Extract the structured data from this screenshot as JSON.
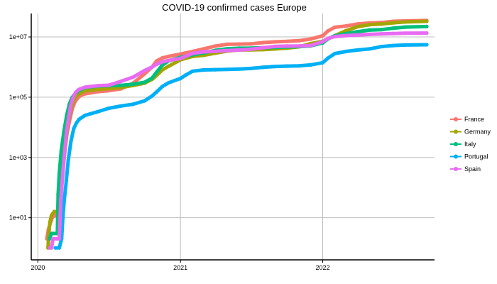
{
  "chart_data": {
    "type": "line",
    "title": "COVID-19 confirmed cases Europe",
    "xlabel": "",
    "ylabel": "",
    "y_scale": "log10",
    "ylim": [
      0.4,
      60000000
    ],
    "xlim": [
      "2019-12-15",
      "2022-10-15"
    ],
    "x_ticks": [
      "2020-01-01",
      "2021-01-01",
      "2022-01-01"
    ],
    "x_tick_labels": [
      "2020",
      "2021",
      "2022"
    ],
    "y_ticks": [
      10,
      1000,
      100000,
      10000000
    ],
    "y_tick_labels": [
      "1e+01",
      "1e+03",
      "1e+05",
      "1e+07"
    ],
    "grid": true,
    "legend_position": "right",
    "series": [
      {
        "name": "France",
        "color": "#F8766D",
        "points": [
          [
            "2020-01-24",
            2
          ],
          [
            "2020-01-28",
            4
          ],
          [
            "2020-02-01",
            6
          ],
          [
            "2020-02-08",
            11
          ],
          [
            "2020-02-15",
            12
          ],
          [
            "2020-02-25",
            14
          ],
          [
            "2020-02-29",
            60
          ],
          [
            "2020-03-08",
            1100
          ],
          [
            "2020-03-15",
            5400
          ],
          [
            "2020-03-22",
            16000
          ],
          [
            "2020-03-29",
            40000
          ],
          [
            "2020-04-05",
            70000
          ],
          [
            "2020-04-12",
            93000
          ],
          [
            "2020-04-20",
            115000
          ],
          [
            "2020-05-01",
            130000
          ],
          [
            "2020-06-01",
            152000
          ],
          [
            "2020-07-01",
            165000
          ],
          [
            "2020-08-01",
            190000
          ],
          [
            "2020-09-01",
            290000
          ],
          [
            "2020-10-01",
            600000
          ],
          [
            "2020-10-20",
            1000000
          ],
          [
            "2020-11-01",
            1600000
          ],
          [
            "2020-11-15",
            2000000
          ],
          [
            "2020-12-01",
            2250000
          ],
          [
            "2021-01-01",
            2700000
          ],
          [
            "2021-02-01",
            3300000
          ],
          [
            "2021-03-01",
            4000000
          ],
          [
            "2021-04-01",
            5000000
          ],
          [
            "2021-05-01",
            5700000
          ],
          [
            "2021-06-01",
            5800000
          ],
          [
            "2021-07-01",
            5900000
          ],
          [
            "2021-08-01",
            6500000
          ],
          [
            "2021-09-01",
            6900000
          ],
          [
            "2021-10-01",
            7100000
          ],
          [
            "2021-11-01",
            7500000
          ],
          [
            "2021-12-01",
            8500000
          ],
          [
            "2022-01-01",
            11000000
          ],
          [
            "2022-01-15",
            16000000
          ],
          [
            "2022-02-01",
            21000000
          ],
          [
            "2022-03-01",
            23000000
          ],
          [
            "2022-04-01",
            27000000
          ],
          [
            "2022-05-01",
            29000000
          ],
          [
            "2022-06-01",
            30000000
          ],
          [
            "2022-07-01",
            33000000
          ],
          [
            "2022-08-01",
            34000000
          ],
          [
            "2022-09-25",
            35000000
          ]
        ]
      },
      {
        "name": "Germany",
        "color": "#A3A500",
        "points": [
          [
            "2020-01-27",
            1
          ],
          [
            "2020-01-30",
            4
          ],
          [
            "2020-02-01",
            7
          ],
          [
            "2020-02-05",
            12
          ],
          [
            "2020-02-12",
            16
          ],
          [
            "2020-02-20",
            16
          ],
          [
            "2020-02-27",
            30
          ],
          [
            "2020-03-03",
            200
          ],
          [
            "2020-03-10",
            1500
          ],
          [
            "2020-03-17",
            9000
          ],
          [
            "2020-03-24",
            32000
          ],
          [
            "2020-03-31",
            68000
          ],
          [
            "2020-04-07",
            105000
          ],
          [
            "2020-04-15",
            130000
          ],
          [
            "2020-05-01",
            162000
          ],
          [
            "2020-06-01",
            182000
          ],
          [
            "2020-07-01",
            195000
          ],
          [
            "2020-08-01",
            210000
          ],
          [
            "2020-09-01",
            245000
          ],
          [
            "2020-10-01",
            295000
          ],
          [
            "2020-10-20",
            390000
          ],
          [
            "2020-11-01",
            530000
          ],
          [
            "2020-11-15",
            800000
          ],
          [
            "2020-12-01",
            1060000
          ],
          [
            "2021-01-01",
            1750000
          ],
          [
            "2021-02-01",
            2250000
          ],
          [
            "2021-03-01",
            2450000
          ],
          [
            "2021-04-01",
            2900000
          ],
          [
            "2021-05-01",
            3400000
          ],
          [
            "2021-06-01",
            3700000
          ],
          [
            "2021-07-01",
            3730000
          ],
          [
            "2021-08-01",
            3800000
          ],
          [
            "2021-09-01",
            4000000
          ],
          [
            "2021-10-01",
            4250000
          ],
          [
            "2021-11-01",
            4700000
          ],
          [
            "2021-12-01",
            6000000
          ],
          [
            "2022-01-01",
            7200000
          ],
          [
            "2022-02-01",
            11000000
          ],
          [
            "2022-03-01",
            16000000
          ],
          [
            "2022-04-01",
            22000000
          ],
          [
            "2022-05-01",
            25500000
          ],
          [
            "2022-06-01",
            27000000
          ],
          [
            "2022-07-01",
            29500000
          ],
          [
            "2022-08-01",
            31500000
          ],
          [
            "2022-09-25",
            33000000
          ]
        ]
      },
      {
        "name": "Italy",
        "color": "#00BF7D",
        "points": [
          [
            "2020-01-31",
            2
          ],
          [
            "2020-02-05",
            3
          ],
          [
            "2020-02-20",
            3
          ],
          [
            "2020-02-22",
            60
          ],
          [
            "2020-02-25",
            300
          ],
          [
            "2020-03-01",
            1700
          ],
          [
            "2020-03-08",
            7400
          ],
          [
            "2020-03-15",
            25000
          ],
          [
            "2020-03-22",
            60000
          ],
          [
            "2020-03-29",
            98000
          ],
          [
            "2020-04-05",
            128000
          ],
          [
            "2020-04-15",
            165000
          ],
          [
            "2020-05-01",
            207000
          ],
          [
            "2020-06-01",
            233000
          ],
          [
            "2020-07-01",
            240000
          ],
          [
            "2020-08-01",
            248000
          ],
          [
            "2020-09-01",
            270000
          ],
          [
            "2020-10-01",
            315000
          ],
          [
            "2020-10-20",
            430000
          ],
          [
            "2020-11-01",
            680000
          ],
          [
            "2020-11-15",
            1150000
          ],
          [
            "2020-12-01",
            1600000
          ],
          [
            "2021-01-01",
            2100000
          ],
          [
            "2021-02-01",
            2550000
          ],
          [
            "2021-03-01",
            2950000
          ],
          [
            "2021-04-01",
            3600000
          ],
          [
            "2021-05-01",
            4050000
          ],
          [
            "2021-06-01",
            4220000
          ],
          [
            "2021-07-01",
            4260000
          ],
          [
            "2021-08-01",
            4370000
          ],
          [
            "2021-09-01",
            4530000
          ],
          [
            "2021-10-01",
            4670000
          ],
          [
            "2021-11-01",
            4780000
          ],
          [
            "2021-12-01",
            5050000
          ],
          [
            "2022-01-01",
            6300000
          ],
          [
            "2022-01-15",
            8700000
          ],
          [
            "2022-02-01",
            10900000
          ],
          [
            "2022-03-01",
            12800000
          ],
          [
            "2022-04-01",
            15000000
          ],
          [
            "2022-05-01",
            16900000
          ],
          [
            "2022-06-01",
            17500000
          ],
          [
            "2022-07-01",
            19500000
          ],
          [
            "2022-08-01",
            21300000
          ],
          [
            "2022-09-25",
            22100000
          ]
        ]
      },
      {
        "name": "Portugal",
        "color": "#00B0F6",
        "points": [
          [
            "2020-02-15",
            1
          ],
          [
            "2020-02-25",
            1
          ],
          [
            "2020-03-02",
            2
          ],
          [
            "2020-03-05",
            10
          ],
          [
            "2020-03-09",
            40
          ],
          [
            "2020-03-14",
            170
          ],
          [
            "2020-03-19",
            800
          ],
          [
            "2020-03-26",
            3500
          ],
          [
            "2020-04-02",
            9000
          ],
          [
            "2020-04-09",
            14000
          ],
          [
            "2020-04-16",
            18500
          ],
          [
            "2020-05-01",
            25000
          ],
          [
            "2020-06-01",
            32500
          ],
          [
            "2020-07-01",
            43000
          ],
          [
            "2020-08-01",
            51000
          ],
          [
            "2020-09-01",
            58000
          ],
          [
            "2020-10-01",
            76000
          ],
          [
            "2020-10-20",
            110000
          ],
          [
            "2020-11-01",
            150000
          ],
          [
            "2020-11-15",
            225000
          ],
          [
            "2020-12-01",
            300000
          ],
          [
            "2021-01-01",
            420000
          ],
          [
            "2021-01-15",
            550000
          ],
          [
            "2021-02-01",
            730000
          ],
          [
            "2021-03-01",
            805000
          ],
          [
            "2021-04-01",
            822000
          ],
          [
            "2021-05-01",
            838000
          ],
          [
            "2021-06-01",
            860000
          ],
          [
            "2021-07-01",
            900000
          ],
          [
            "2021-08-01",
            980000
          ],
          [
            "2021-09-01",
            1050000
          ],
          [
            "2021-10-01",
            1075000
          ],
          [
            "2021-11-01",
            1095000
          ],
          [
            "2021-12-01",
            1180000
          ],
          [
            "2022-01-01",
            1400000
          ],
          [
            "2022-01-15",
            2000000
          ],
          [
            "2022-02-01",
            2800000
          ],
          [
            "2022-03-01",
            3300000
          ],
          [
            "2022-04-01",
            3700000
          ],
          [
            "2022-05-01",
            4000000
          ],
          [
            "2022-06-01",
            4800000
          ],
          [
            "2022-07-01",
            5200000
          ],
          [
            "2022-08-01",
            5400000
          ],
          [
            "2022-09-25",
            5500000
          ]
        ]
      },
      {
        "name": "Spain",
        "color": "#E76BF3",
        "points": [
          [
            "2020-01-31",
            1
          ],
          [
            "2020-02-05",
            1
          ],
          [
            "2020-02-09",
            2
          ],
          [
            "2020-02-20",
            2
          ],
          [
            "2020-02-25",
            2
          ],
          [
            "2020-02-29",
            40
          ],
          [
            "2020-03-05",
            300
          ],
          [
            "2020-03-10",
            1700
          ],
          [
            "2020-03-15",
            7800
          ],
          [
            "2020-03-20",
            21000
          ],
          [
            "2020-03-25",
            50000
          ],
          [
            "2020-03-31",
            95000
          ],
          [
            "2020-04-07",
            145000
          ],
          [
            "2020-04-15",
            180000
          ],
          [
            "2020-05-01",
            215000
          ],
          [
            "2020-06-01",
            240000
          ],
          [
            "2020-07-01",
            250000
          ],
          [
            "2020-08-01",
            335000
          ],
          [
            "2020-09-01",
            460000
          ],
          [
            "2020-10-01",
            770000
          ],
          [
            "2020-10-20",
            1000000
          ],
          [
            "2020-11-01",
            1250000
          ],
          [
            "2020-11-15",
            1480000
          ],
          [
            "2020-12-01",
            1650000
          ],
          [
            "2021-01-01",
            1930000
          ],
          [
            "2021-02-01",
            2850000
          ],
          [
            "2021-03-01",
            3200000
          ],
          [
            "2021-04-01",
            3330000
          ],
          [
            "2021-05-01",
            3540000
          ],
          [
            "2021-06-01",
            3700000
          ],
          [
            "2021-07-01",
            3900000
          ],
          [
            "2021-08-01",
            4400000
          ],
          [
            "2021-09-01",
            4850000
          ],
          [
            "2021-10-01",
            4960000
          ],
          [
            "2021-11-01",
            5030000
          ],
          [
            "2021-12-01",
            5200000
          ],
          [
            "2022-01-01",
            7000000
          ],
          [
            "2022-01-15",
            9000000
          ],
          [
            "2022-02-01",
            10300000
          ],
          [
            "2022-03-01",
            11100000
          ],
          [
            "2022-04-01",
            11600000
          ],
          [
            "2022-05-01",
            12200000
          ],
          [
            "2022-06-01",
            12600000
          ],
          [
            "2022-07-01",
            13000000
          ],
          [
            "2022-08-01",
            13300000
          ],
          [
            "2022-09-25",
            13400000
          ]
        ]
      }
    ]
  }
}
